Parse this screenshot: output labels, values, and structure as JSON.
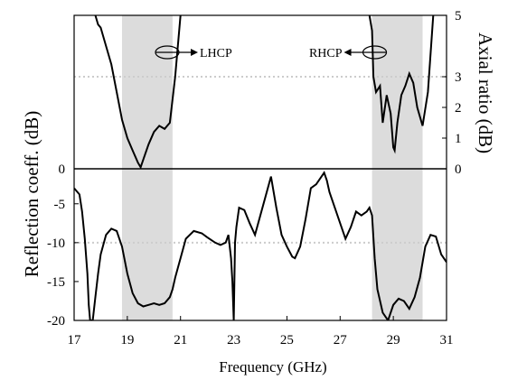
{
  "chart_data": {
    "type": "line",
    "x_label": "Frequency (GHz)",
    "x_ticks": [
      "17",
      "19",
      "21",
      "23",
      "25",
      "27",
      "29",
      "31"
    ],
    "xlim": [
      17,
      31
    ],
    "shaded_bands": [
      [
        18.8,
        20.7
      ],
      [
        28.2,
        30.1
      ]
    ],
    "panels": [
      {
        "name": "axial-ratio",
        "y_label": "Axial ratio (dB)",
        "ylim": [
          0,
          5
        ],
        "y_ticks_right": [
          "0",
          "1",
          "2",
          "3",
          "5"
        ],
        "y_ticks_left": [
          "0"
        ],
        "reference_line": 3,
        "annotations": [
          "LHCP",
          "RHCP"
        ],
        "series": [
          {
            "x": [
              17.8,
              17.9,
              18.0,
              18.2,
              18.4,
              18.6,
              18.8,
              19.0,
              19.2,
              19.4,
              19.5,
              19.6,
              19.8,
              20.0,
              20.2,
              20.4,
              20.6,
              20.8,
              21.0
            ],
            "y": [
              5.0,
              4.7,
              4.6,
              4.0,
              3.4,
              2.5,
              1.6,
              1.0,
              0.6,
              0.2,
              0.05,
              0.3,
              0.8,
              1.2,
              1.4,
              1.3,
              1.5,
              3.0,
              5.0
            ]
          },
          {
            "x": [
              28.1,
              28.2,
              28.25,
              28.35,
              28.5,
              28.6,
              28.75,
              28.9,
              29.0,
              29.05,
              29.15,
              29.3,
              29.45,
              29.6,
              29.75,
              29.9,
              30.1,
              30.3,
              30.5
            ],
            "y": [
              5.0,
              4.5,
              3.0,
              2.5,
              2.7,
              1.5,
              2.4,
              1.8,
              0.7,
              0.6,
              1.5,
              2.4,
              2.7,
              3.1,
              2.8,
              2.0,
              1.4,
              2.5,
              5.0
            ]
          }
        ]
      },
      {
        "name": "reflection-coefficient",
        "y_label": "Reflection coeff. (dB)",
        "ylim": [
          -20,
          -0.5
        ],
        "y_ticks": [
          "-5",
          "-10",
          "-15",
          "-20"
        ],
        "reference_line": -10,
        "series": [
          {
            "x": [
              17.0,
              17.2,
              17.3,
              17.4,
              17.5,
              17.55,
              17.6,
              17.7,
              17.8,
              17.9,
              18.0,
              18.2,
              18.4,
              18.6,
              18.8,
              19.0,
              19.2,
              19.4,
              19.6,
              19.8,
              20.0,
              20.2,
              20.4,
              20.6,
              20.7,
              20.8,
              21.0,
              21.2,
              21.5,
              21.8,
              22.0,
              22.3,
              22.5,
              22.7,
              22.8,
              22.9,
              22.95,
              23.0,
              23.05,
              23.1,
              23.2,
              23.4,
              23.6,
              23.8,
              24.0,
              24.2,
              24.4,
              24.6,
              24.8,
              25.0,
              25.2,
              25.3,
              25.5,
              25.7,
              25.9,
              26.1,
              26.3,
              26.4,
              26.5,
              26.6,
              26.8,
              27.0,
              27.2,
              27.4,
              27.6,
              27.8,
              28.0,
              28.1,
              28.2,
              28.3,
              28.4,
              28.6,
              28.8,
              29.0,
              29.2,
              29.4,
              29.6,
              29.8,
              30.0,
              30.2,
              30.4,
              30.6,
              30.8,
              31.0
            ],
            "y": [
              -3.0,
              -3.8,
              -6.0,
              -9.5,
              -14.0,
              -18.0,
              -20.0,
              -20.0,
              -17.0,
              -14.0,
              -11.5,
              -9.0,
              -8.2,
              -8.5,
              -10.5,
              -14.0,
              -16.5,
              -17.8,
              -18.2,
              -18.0,
              -17.8,
              -18.0,
              -17.8,
              -17.0,
              -16.0,
              -14.5,
              -12.0,
              -9.5,
              -8.5,
              -8.8,
              -9.3,
              -10.0,
              -10.3,
              -10.0,
              -9.0,
              -12.0,
              -15.0,
              -20.0,
              -10.0,
              -8.0,
              -5.5,
              -5.8,
              -7.5,
              -9.0,
              -6.5,
              -4.0,
              -1.5,
              -5.5,
              -9.0,
              -10.5,
              -11.8,
              -12.0,
              -10.5,
              -7.0,
              -3.0,
              -2.5,
              -1.5,
              -1.0,
              -2.0,
              -3.5,
              -5.5,
              -7.5,
              -9.5,
              -8.0,
              -6.0,
              -6.5,
              -6.0,
              -5.5,
              -6.5,
              -12.0,
              -16.0,
              -19.0,
              -20.0,
              -18.0,
              -17.2,
              -17.5,
              -18.5,
              -17.0,
              -14.5,
              -10.5,
              -9.0,
              -9.2,
              -11.5,
              -12.5
            ]
          }
        ]
      }
    ]
  }
}
